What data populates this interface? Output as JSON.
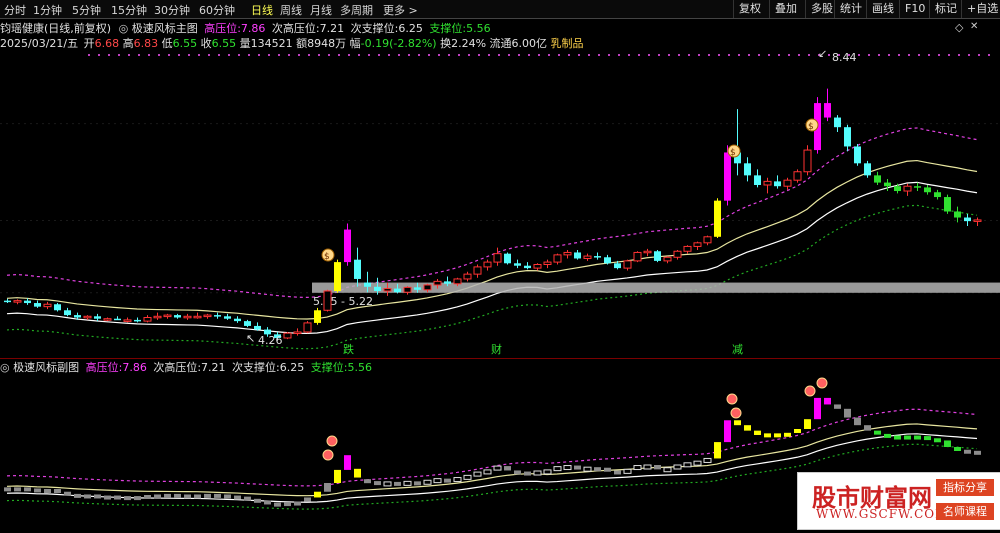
{
  "toolbar": {
    "periods": [
      "分时",
      "1分钟",
      "5分钟",
      "15分钟",
      "30分钟",
      "60分钟",
      "日线",
      "周线",
      "月线",
      "多周期",
      "更多 >"
    ],
    "active_period": "日线",
    "buttons": [
      "复权",
      "叠加",
      "多股",
      "统计",
      "画线",
      "F10",
      "标记",
      "+自选"
    ]
  },
  "main_header": {
    "stock": "钧瑶健康(日线,前复权)",
    "indicator_marker": "◎",
    "indicator_name": "极速风标主图",
    "hp_label": "高压位:",
    "hp_value": "7.86",
    "shp_label": "次高压位:",
    "shp_value": "7.21",
    "ssp_label": "次支撑位:",
    "ssp_value": "6.25",
    "sp_label": "支撑位:",
    "sp_value": "5.56"
  },
  "info_line": {
    "date": "2025/03/21/五",
    "open_label": "开",
    "open": "6.68",
    "high_label": "高",
    "high": "6.83",
    "low_label": "低",
    "low": "6.55",
    "close_label": "收",
    "close": "6.55",
    "volume_label": "量",
    "volume": "134521",
    "amount_label": "额",
    "amount": "8948万",
    "change_label": "幅",
    "change": "-0.19(-2.82%)",
    "turnover_label": "换",
    "turnover": "2.24%",
    "float_label": "流通",
    "float": "6.00亿",
    "industry": "乳制品"
  },
  "annotations": {
    "peak_price": "8.44",
    "low_price": "4.26",
    "zone_label": "5.05 - 5.22",
    "signal_1": "跌",
    "signal_2": "财",
    "signal_3": "减"
  },
  "sub_header": {
    "marker": "◎",
    "name": "极速风标副图",
    "hp_label": "高压位:",
    "hp_value": "7.86",
    "shp_label": "次高压位:",
    "shp_value": "7.21",
    "ssp_label": "次支撑位:",
    "ssp_value": "6.25",
    "sp_label": "支撑位:",
    "sp_value": "5.56"
  },
  "watermark": {
    "title": "股市财富网",
    "url": "WWW.GSCFW.COM",
    "tag1": "指标分享",
    "tag2": "名师课程"
  },
  "colors": {
    "up": "#ff3232",
    "down": "#54fcfc",
    "signal_yellow": "#ffff00",
    "signal_magenta": "#ff00ff",
    "upper_band": "#e040e0",
    "mid_band": "#e8e6a0",
    "lower_band": "#ffffff",
    "lower_outer": "#22aa22",
    "zone": "#b4b4b4"
  },
  "chart_data": {
    "type": "candlestick",
    "series_ohlc": [
      [
        4.92,
        4.95,
        4.88,
        4.9
      ],
      [
        4.9,
        4.94,
        4.86,
        4.92
      ],
      [
        4.92,
        4.96,
        4.85,
        4.88
      ],
      [
        4.88,
        4.92,
        4.8,
        4.82
      ],
      [
        4.82,
        4.9,
        4.78,
        4.86
      ],
      [
        4.86,
        4.88,
        4.74,
        4.76
      ],
      [
        4.76,
        4.8,
        4.66,
        4.68
      ],
      [
        4.68,
        4.72,
        4.6,
        4.64
      ],
      [
        4.64,
        4.68,
        4.6,
        4.66
      ],
      [
        4.66,
        4.7,
        4.58,
        4.62
      ],
      [
        4.62,
        4.64,
        4.58,
        4.62
      ],
      [
        4.62,
        4.66,
        4.6,
        4.6
      ],
      [
        4.6,
        4.64,
        4.56,
        4.6
      ],
      [
        4.6,
        4.64,
        4.56,
        4.58
      ],
      [
        4.58,
        4.68,
        4.56,
        4.64
      ],
      [
        4.64,
        4.72,
        4.6,
        4.66
      ],
      [
        4.66,
        4.7,
        4.62,
        4.68
      ],
      [
        4.68,
        4.7,
        4.62,
        4.64
      ],
      [
        4.64,
        4.7,
        4.6,
        4.66
      ],
      [
        4.66,
        4.72,
        4.62,
        4.66
      ],
      [
        4.66,
        4.7,
        4.62,
        4.68
      ],
      [
        4.68,
        4.72,
        4.62,
        4.66
      ],
      [
        4.66,
        4.7,
        4.6,
        4.62
      ],
      [
        4.62,
        4.66,
        4.55,
        4.58
      ],
      [
        4.58,
        4.6,
        4.48,
        4.5
      ],
      [
        4.5,
        4.56,
        4.42,
        4.44
      ],
      [
        4.44,
        4.48,
        4.32,
        4.36
      ],
      [
        4.36,
        4.4,
        4.26,
        4.3
      ],
      [
        4.3,
        4.4,
        4.28,
        4.38
      ],
      [
        4.38,
        4.46,
        4.34,
        4.4
      ],
      [
        4.4,
        4.58,
        4.38,
        4.55
      ],
      [
        4.55,
        4.8,
        4.52,
        4.76
      ],
      [
        4.76,
        5.1,
        4.74,
        5.08
      ],
      [
        5.08,
        5.6,
        5.05,
        5.56
      ],
      [
        5.56,
        6.2,
        5.5,
        6.1
      ],
      [
        5.6,
        5.8,
        5.15,
        5.28
      ],
      [
        5.22,
        5.4,
        5.06,
        5.15
      ],
      [
        5.15,
        5.3,
        5.02,
        5.08
      ],
      [
        5.08,
        5.22,
        5.0,
        5.12
      ],
      [
        5.12,
        5.2,
        5.04,
        5.06
      ],
      [
        5.06,
        5.16,
        5.02,
        5.14
      ],
      [
        5.14,
        5.22,
        5.05,
        5.1
      ],
      [
        5.1,
        5.2,
        5.06,
        5.18
      ],
      [
        5.18,
        5.28,
        5.12,
        5.24
      ],
      [
        5.24,
        5.32,
        5.16,
        5.2
      ],
      [
        5.2,
        5.3,
        5.16,
        5.28
      ],
      [
        5.28,
        5.4,
        5.24,
        5.36
      ],
      [
        5.36,
        5.52,
        5.3,
        5.48
      ],
      [
        5.48,
        5.6,
        5.42,
        5.56
      ],
      [
        5.56,
        5.8,
        5.5,
        5.7
      ],
      [
        5.7,
        5.72,
        5.52,
        5.54
      ],
      [
        5.54,
        5.6,
        5.46,
        5.5
      ],
      [
        5.5,
        5.56,
        5.44,
        5.46
      ],
      [
        5.46,
        5.54,
        5.42,
        5.52
      ],
      [
        5.52,
        5.6,
        5.46,
        5.56
      ],
      [
        5.56,
        5.7,
        5.52,
        5.68
      ],
      [
        5.68,
        5.76,
        5.62,
        5.72
      ],
      [
        5.72,
        5.76,
        5.6,
        5.62
      ],
      [
        5.62,
        5.7,
        5.58,
        5.66
      ],
      [
        5.66,
        5.72,
        5.6,
        5.64
      ],
      [
        5.64,
        5.68,
        5.52,
        5.54
      ],
      [
        5.54,
        5.58,
        5.44,
        5.46
      ],
      [
        5.46,
        5.6,
        5.42,
        5.58
      ],
      [
        5.58,
        5.74,
        5.56,
        5.72
      ],
      [
        5.72,
        5.78,
        5.66,
        5.74
      ],
      [
        5.74,
        5.76,
        5.56,
        5.58
      ],
      [
        5.58,
        5.66,
        5.54,
        5.64
      ],
      [
        5.64,
        5.76,
        5.6,
        5.74
      ],
      [
        5.74,
        5.84,
        5.7,
        5.82
      ],
      [
        5.82,
        5.9,
        5.76,
        5.88
      ],
      [
        5.88,
        6.0,
        5.84,
        5.98
      ],
      [
        5.98,
        6.62,
        5.96,
        6.58
      ],
      [
        6.58,
        7.5,
        6.5,
        7.38
      ],
      [
        7.38,
        8.1,
        7.0,
        7.2
      ],
      [
        7.2,
        7.3,
        6.9,
        7.0
      ],
      [
        7.0,
        7.1,
        6.8,
        6.84
      ],
      [
        6.84,
        6.96,
        6.7,
        6.9
      ],
      [
        6.9,
        7.0,
        6.78,
        6.82
      ],
      [
        6.82,
        6.96,
        6.76,
        6.92
      ],
      [
        6.92,
        7.1,
        6.88,
        7.06
      ],
      [
        7.06,
        7.5,
        7.0,
        7.42
      ],
      [
        7.42,
        8.3,
        7.36,
        8.2
      ],
      [
        8.2,
        8.44,
        7.9,
        7.96
      ],
      [
        7.96,
        8.0,
        7.72,
        7.8
      ],
      [
        7.8,
        7.84,
        7.4,
        7.48
      ],
      [
        7.48,
        7.52,
        7.16,
        7.2
      ],
      [
        7.2,
        7.24,
        6.96,
        7.0
      ],
      [
        7.0,
        7.06,
        6.84,
        6.88
      ],
      [
        6.88,
        6.94,
        6.74,
        6.82
      ],
      [
        6.82,
        6.86,
        6.7,
        6.74
      ],
      [
        6.74,
        6.86,
        6.66,
        6.82
      ],
      [
        6.82,
        6.88,
        6.74,
        6.8
      ],
      [
        6.8,
        6.84,
        6.68,
        6.72
      ],
      [
        6.72,
        6.76,
        6.6,
        6.64
      ],
      [
        6.64,
        6.68,
        6.36,
        6.4
      ],
      [
        6.4,
        6.48,
        6.22,
        6.3
      ],
      [
        6.3,
        6.36,
        6.16,
        6.24
      ],
      [
        6.24,
        6.3,
        6.16,
        6.26
      ]
    ],
    "ylim": [
      4.2,
      8.6
    ],
    "resistance": 7.86,
    "support_zone": [
      5.05,
      5.22
    ]
  }
}
